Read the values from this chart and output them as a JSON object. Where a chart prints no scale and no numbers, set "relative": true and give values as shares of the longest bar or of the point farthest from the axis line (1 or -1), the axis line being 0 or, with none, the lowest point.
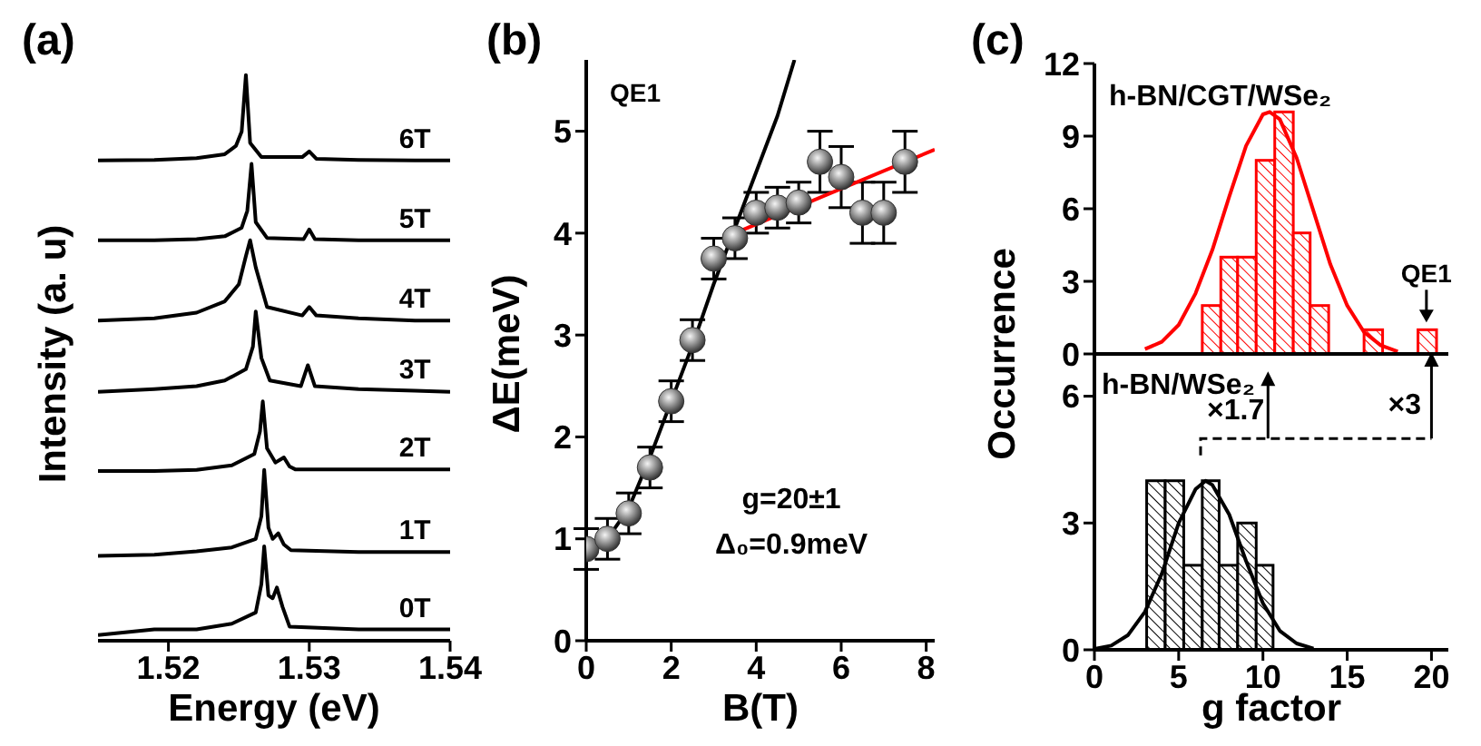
{
  "chart_data": [
    {
      "type": "line",
      "title": "(a)",
      "xlabel": "Energy (eV)",
      "ylabel": "Intensity (a. u)",
      "relative": true,
      "xlim": [
        1.515,
        1.54
      ],
      "xticks": [
        1.52,
        1.53,
        1.54
      ],
      "series": [
        {
          "name": "0T",
          "color": "#000000",
          "x": [
            1.515,
            1.519,
            1.522,
            1.5245,
            1.5262,
            1.5266,
            1.5268,
            1.5271,
            1.5274,
            1.5277,
            1.5281,
            1.5286,
            1.5335,
            1.5375,
            1.54
          ],
          "values": [
            0.01,
            0.02,
            0.02,
            0.03,
            0.05,
            0.1,
            0.167,
            0.08,
            0.075,
            0.094,
            0.06,
            0.025,
            0.02,
            0.02,
            0.02
          ]
        },
        {
          "name": "1T",
          "color": "#000000",
          "x": [
            1.515,
            1.519,
            1.522,
            1.5245,
            1.5262,
            1.5266,
            1.5268,
            1.5271,
            1.5274,
            1.5278,
            1.5282,
            1.5287,
            1.5335,
            1.5375,
            1.54
          ],
          "values": [
            0.15,
            0.152,
            0.158,
            0.165,
            0.18,
            0.22,
            0.302,
            0.2,
            0.18,
            0.19,
            0.17,
            0.16,
            0.157,
            0.157,
            0.157
          ]
        },
        {
          "name": "2T",
          "color": "#000000",
          "x": [
            1.515,
            1.519,
            1.522,
            1.5245,
            1.5261,
            1.5265,
            1.5267,
            1.527,
            1.5276,
            1.5282,
            1.5286,
            1.529,
            1.5335,
            1.5375,
            1.54
          ],
          "values": [
            0.3,
            0.3,
            0.302,
            0.31,
            0.33,
            0.37,
            0.423,
            0.34,
            0.315,
            0.324,
            0.308,
            0.303,
            0.303,
            0.303,
            0.303
          ]
        },
        {
          "name": "3T",
          "color": "#000000",
          "x": [
            1.515,
            1.519,
            1.522,
            1.524,
            1.5255,
            1.526,
            1.5262,
            1.5266,
            1.5272,
            1.5294,
            1.5299,
            1.5304,
            1.5335,
            1.5375,
            1.54
          ],
          "values": [
            0.44,
            0.445,
            0.45,
            0.46,
            0.48,
            0.52,
            0.582,
            0.5,
            0.46,
            0.45,
            0.487,
            0.45,
            0.445,
            0.442,
            0.44
          ]
        },
        {
          "name": "4T",
          "color": "#000000",
          "x": [
            1.515,
            1.519,
            1.522,
            1.524,
            1.525,
            1.5255,
            1.5258,
            1.5262,
            1.527,
            1.5295,
            1.53,
            1.5305,
            1.5335,
            1.5375,
            1.54
          ],
          "values": [
            0.566,
            0.57,
            0.58,
            0.6,
            0.63,
            0.68,
            0.708,
            0.66,
            0.59,
            0.575,
            0.59,
            0.575,
            0.57,
            0.566,
            0.566
          ]
        },
        {
          "name": "5T",
          "color": "#000000",
          "x": [
            1.515,
            1.519,
            1.522,
            1.524,
            1.5252,
            1.5256,
            1.5259,
            1.5262,
            1.527,
            1.5296,
            1.53,
            1.5304,
            1.5335,
            1.5375,
            1.54
          ],
          "values": [
            0.708,
            0.708,
            0.71,
            0.715,
            0.73,
            0.76,
            0.843,
            0.74,
            0.712,
            0.71,
            0.727,
            0.71,
            0.708,
            0.708,
            0.708
          ]
        },
        {
          "name": "6T",
          "color": "#000000",
          "x": [
            1.515,
            1.519,
            1.522,
            1.524,
            1.5248,
            1.5252,
            1.5255,
            1.5258,
            1.5266,
            1.5295,
            1.53,
            1.5305,
            1.5335,
            1.5375,
            1.54
          ],
          "values": [
            0.849,
            0.85,
            0.853,
            0.86,
            0.875,
            0.9,
            1.0,
            0.88,
            0.855,
            0.855,
            0.865,
            0.852,
            0.85,
            0.849,
            0.849
          ]
        }
      ]
    },
    {
      "type": "scatter",
      "title": "(b)",
      "xlabel": "B(T)",
      "ylabel": "ΔE(meV)",
      "annotations": [
        "QE1",
        "g=20±1",
        "Δ₀=0.9meV"
      ],
      "xlim": [
        0,
        8.2
      ],
      "xticks": [
        0,
        2,
        4,
        6,
        8
      ],
      "ylim": [
        0,
        5.7
      ],
      "yticks": [
        0,
        1,
        2,
        3,
        4,
        5
      ],
      "series": [
        {
          "type": "scatter",
          "marker": "circle",
          "color": "#333333",
          "x": [
            0,
            0.5,
            1,
            1.5,
            2,
            2.5,
            3,
            3.5,
            4,
            4.5,
            5,
            5.5,
            6,
            6.5,
            7,
            7.5
          ],
          "values": [
            0.9,
            1.0,
            1.25,
            1.7,
            2.35,
            2.95,
            3.75,
            3.95,
            4.2,
            4.25,
            4.3,
            4.7,
            4.55,
            4.2,
            4.2,
            4.7
          ],
          "errors": [
            0.2,
            0.2,
            0.2,
            0.2,
            0.2,
            0.2,
            0.2,
            0.2,
            0.2,
            0.2,
            0.2,
            0.3,
            0.3,
            0.3,
            0.3,
            0.3
          ]
        },
        {
          "type": "line",
          "color": "#000000",
          "x": [
            0,
            0.5,
            1,
            1.5,
            2,
            2.5,
            3,
            3.5,
            4,
            4.5,
            4.9
          ],
          "values": [
            0.85,
            1.0,
            1.3,
            1.8,
            2.35,
            2.9,
            3.5,
            4.05,
            4.6,
            5.15,
            5.7
          ]
        },
        {
          "type": "line",
          "color": "#ff0000",
          "x": [
            3.5,
            8.2
          ],
          "values": [
            4.0,
            4.82
          ]
        }
      ]
    },
    {
      "type": "histogram",
      "title": "(c)",
      "ylabel": "Occurrence",
      "annotations": [
        "h-BN/CGT/WSe₂",
        {
          "text": "QE1",
          "x": 19.7,
          "y": 1
        }
      ],
      "color": "#ff0000",
      "bins": [
        6.4,
        7.5,
        8.5,
        9.6,
        10.7,
        11.8,
        12.8,
        13.9,
        16.0,
        17.1,
        19.2,
        20.3
      ],
      "values": [
        2,
        4,
        4,
        8,
        10,
        5,
        2,
        0,
        1,
        0,
        1
      ],
      "xlim": [
        0,
        21
      ],
      "xticks": [
        0,
        5,
        10,
        15,
        20
      ],
      "ylim": [
        0,
        12
      ],
      "yticks": [
        0,
        3,
        6,
        9,
        12
      ],
      "tick_labels": "y",
      "series": [
        {
          "type": "line",
          "color": "#ff0000",
          "x": [
            3,
            4,
            5,
            6,
            7,
            8,
            9,
            10,
            10.4,
            11,
            12,
            13,
            14,
            15,
            16,
            17,
            18
          ],
          "values": [
            0.2,
            0.5,
            1.2,
            2.5,
            4.3,
            6.5,
            8.6,
            9.9,
            10,
            9.7,
            8.1,
            5.9,
            3.7,
            2.0,
            0.9,
            0.35,
            0.1
          ]
        }
      ]
    },
    {
      "type": "histogram",
      "xlabel": "g factor",
      "annotations": [
        "h-BN/WSe₂",
        "×1.7",
        "×3"
      ],
      "color": "#000000",
      "bins": [
        3.1,
        4.2,
        5.3,
        6.4,
        7.4,
        8.5,
        9.6,
        10.6
      ],
      "values": [
        4,
        4,
        2,
        4,
        2,
        3,
        2
      ],
      "xlim": [
        0,
        21
      ],
      "xticks": [
        0,
        5,
        10,
        15,
        20
      ],
      "ylim": [
        0,
        7
      ],
      "yticks": [
        0,
        3,
        6
      ],
      "series": [
        {
          "type": "line",
          "color": "#000000",
          "x": [
            0,
            1,
            2,
            3,
            4,
            5,
            6,
            6.6,
            7,
            8,
            9,
            10,
            11,
            12,
            13
          ],
          "values": [
            0.02,
            0.1,
            0.35,
            0.9,
            1.8,
            3.0,
            3.8,
            4.0,
            3.9,
            3.2,
            2.1,
            1.1,
            0.45,
            0.15,
            0.03
          ]
        }
      ]
    }
  ]
}
